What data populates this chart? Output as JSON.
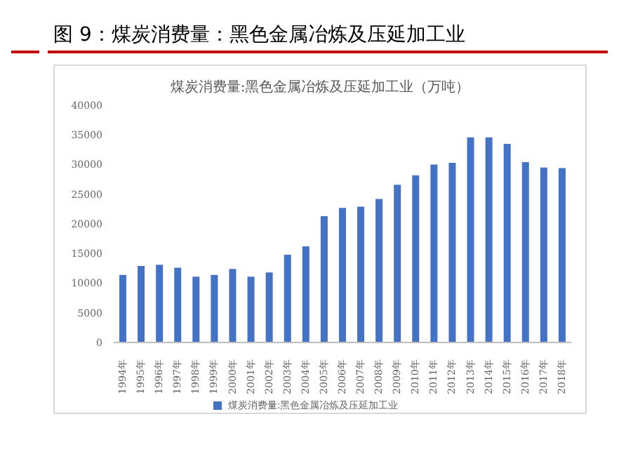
{
  "chart_data": {
    "type": "bar",
    "title": "图 9：煤炭消费量：黑色金属冶炼及压延加工业",
    "subtitle": "煤炭消费量:黑色金属冶炼及压延加工业（万吨）",
    "categories": [
      "1994年",
      "1995年",
      "1996年",
      "1997年",
      "1998年",
      "1999年",
      "2000年",
      "2001年",
      "2002年",
      "2003年",
      "2004年",
      "2005年",
      "2006年",
      "2007年",
      "2008年",
      "2009年",
      "2010年",
      "2011年",
      "2012年",
      "2013年",
      "2014年",
      "2015年",
      "2016年",
      "2017年",
      "2018年"
    ],
    "series": [
      {
        "name": "煤炭消费量:黑色金属冶炼及压延加工业",
        "color": "#4472c4",
        "values": [
          11400,
          12900,
          13100,
          12600,
          11100,
          11400,
          12400,
          11100,
          11800,
          14800,
          16200,
          21300,
          22700,
          22900,
          24200,
          26600,
          28200,
          30000,
          30300,
          34600,
          34600,
          33500,
          30400,
          29500,
          29400
        ]
      }
    ],
    "ylim": [
      0,
      40000
    ],
    "yticks": [
      0,
      5000,
      10000,
      15000,
      20000,
      25000,
      30000,
      35000,
      40000
    ],
    "grid": false,
    "legend": "bottom"
  }
}
